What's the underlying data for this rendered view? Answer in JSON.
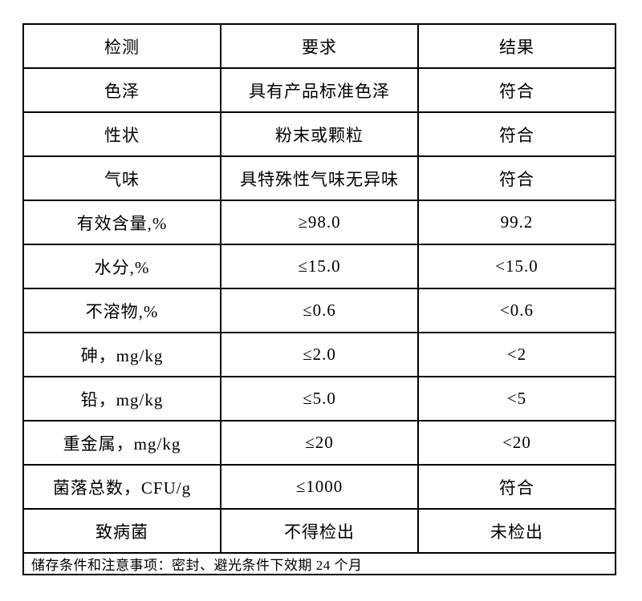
{
  "table": {
    "headers": {
      "test": "检测",
      "requirement": "要求",
      "result": "结果"
    },
    "rows": [
      {
        "test": "色泽",
        "requirement": "具有产品标准色泽",
        "result": "符合"
      },
      {
        "test": "性状",
        "requirement": "粉末或颗粒",
        "result": "符合"
      },
      {
        "test": "气味",
        "requirement": "具特殊性气味无异味",
        "result": "符合"
      },
      {
        "test": "有效含量,%",
        "requirement": "≥98.0",
        "result": "99.2"
      },
      {
        "test": "水分,%",
        "requirement": "≤15.0",
        "result": "<15.0"
      },
      {
        "test": "不溶物,%",
        "requirement": "≤0.6",
        "result": "<0.6"
      },
      {
        "test": "砷，mg/kg",
        "requirement": "≤2.0",
        "result": "<2"
      },
      {
        "test": "铅，mg/kg",
        "requirement": "≤5.0",
        "result": "<5"
      },
      {
        "test": "重金属，mg/kg",
        "requirement": "≤20",
        "result": "<20"
      },
      {
        "test": "菌落总数，CFU/g",
        "requirement": "≤1000",
        "result": "符合"
      },
      {
        "test": "致病菌",
        "requirement": "不得检出",
        "result": "未检出"
      }
    ],
    "footer_note": "储存条件和注意事项：密封、避光条件下效期 24 个月"
  },
  "colors": {
    "border": "#000000",
    "text": "#000000",
    "background": "#ffffff"
  }
}
